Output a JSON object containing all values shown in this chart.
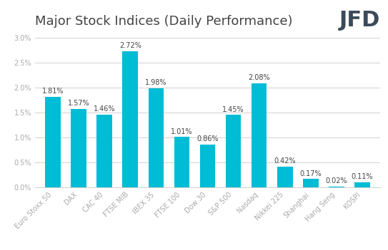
{
  "title": "Major Stock Indices (Daily Performance)",
  "categories": [
    "Euro Stoxx 50",
    "DAX",
    "CAC 40",
    "FTSE MIB",
    "IBEX 35",
    "FTSE 100",
    "Dow 30",
    "S&P 500",
    "Nasdaq",
    "Nikkei 225",
    "Shanghai",
    "Hang Seng",
    "KOSPI"
  ],
  "values": [
    1.81,
    1.57,
    1.46,
    2.72,
    1.98,
    1.01,
    0.86,
    1.45,
    2.08,
    0.42,
    0.17,
    0.02,
    0.11
  ],
  "bar_color": "#00BCD4",
  "background_color": "#ffffff",
  "ylim": [
    0,
    3.1
  ],
  "yticks": [
    0.0,
    0.5,
    1.0,
    1.5,
    2.0,
    2.5,
    3.0
  ],
  "ytick_labels": [
    "0.0%",
    "0.5%",
    "1.0%",
    "1.5%",
    "2.0%",
    "2.5%",
    "3.0%"
  ],
  "title_fontsize": 13,
  "label_fontsize": 7,
  "value_fontsize": 7,
  "grid_color": "#d0d0d0",
  "logo_text": "JFD",
  "logo_color": "#3a4a5a",
  "tick_color": "#aaaaaa"
}
